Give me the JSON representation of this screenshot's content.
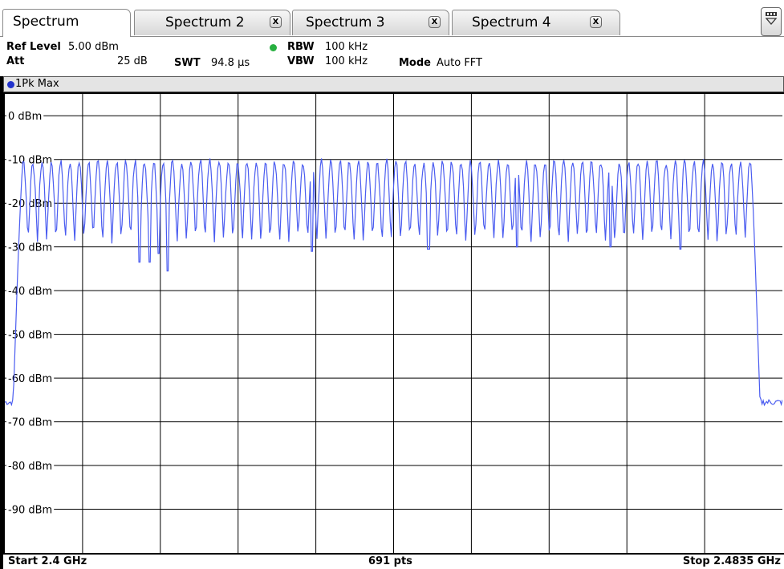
{
  "tabs": [
    {
      "label": "Spectrum",
      "active": true,
      "closable": false
    },
    {
      "label": "Spectrum 2",
      "active": false,
      "closable": true
    },
    {
      "label": "Spectrum 3",
      "active": false,
      "closable": true
    },
    {
      "label": "Spectrum 4",
      "active": false,
      "closable": true
    }
  ],
  "tab_close_glyph": "X",
  "overview_icon": "multiview-icon",
  "header": {
    "ref_level_label": "Ref Level",
    "ref_level_value": "5.00 dBm",
    "att_label": "Att",
    "att_value": "25 dB",
    "swt_label": "SWT",
    "swt_value": "94.8 µs",
    "rbw_label": "RBW",
    "rbw_value": "100 kHz",
    "vbw_label": "VBW",
    "vbw_value": "100 kHz",
    "mode_label": "Mode",
    "mode_value": "Auto FFT",
    "rbw_indicator_color": "#28b040"
  },
  "trace": {
    "label": "1Pk Max",
    "color": "#4a5cf0",
    "dot_color": "#2233cc"
  },
  "footer": {
    "start": "Start 2.4 GHz",
    "points": "691 pts",
    "stop": "Stop 2.4835 GHz"
  },
  "chart_data": {
    "type": "line",
    "ylabels": [
      "0 dBm",
      "-10 dBm",
      "-20 dBm",
      "-30 dBm",
      "-40 dBm",
      "-50 dBm",
      "-60 dBm",
      "-70 dBm",
      "-80 dBm",
      "-90 dBm"
    ],
    "ylim": [
      -100,
      5
    ],
    "xlim": [
      2.4,
      2.4835
    ],
    "x_unit": "GHz",
    "grid": true,
    "grid_x_divisions": 10,
    "series": [
      {
        "values_description_free": true,
        "channels": 79,
        "band_start_ghz": 2.4015,
        "band_stop_ghz": 2.4805,
        "peak_dbm": -10.5,
        "trough_dbm": -28.5,
        "floor_dbm": -65.5,
        "deep_dips": [
          {
            "x": 2.4145,
            "dbm": -33.5
          },
          {
            "x": 2.4155,
            "dbm": -33.5
          },
          {
            "x": 2.4165,
            "dbm": -31.5
          },
          {
            "x": 2.4175,
            "dbm": -35.5
          },
          {
            "x": 2.433,
            "dbm": -31.0
          },
          {
            "x": 2.4455,
            "dbm": -30.5
          },
          {
            "x": 2.455,
            "dbm": -30.0
          },
          {
            "x": 2.465,
            "dbm": -30.0
          },
          {
            "x": 2.4725,
            "dbm": -30.5
          }
        ]
      }
    ]
  }
}
